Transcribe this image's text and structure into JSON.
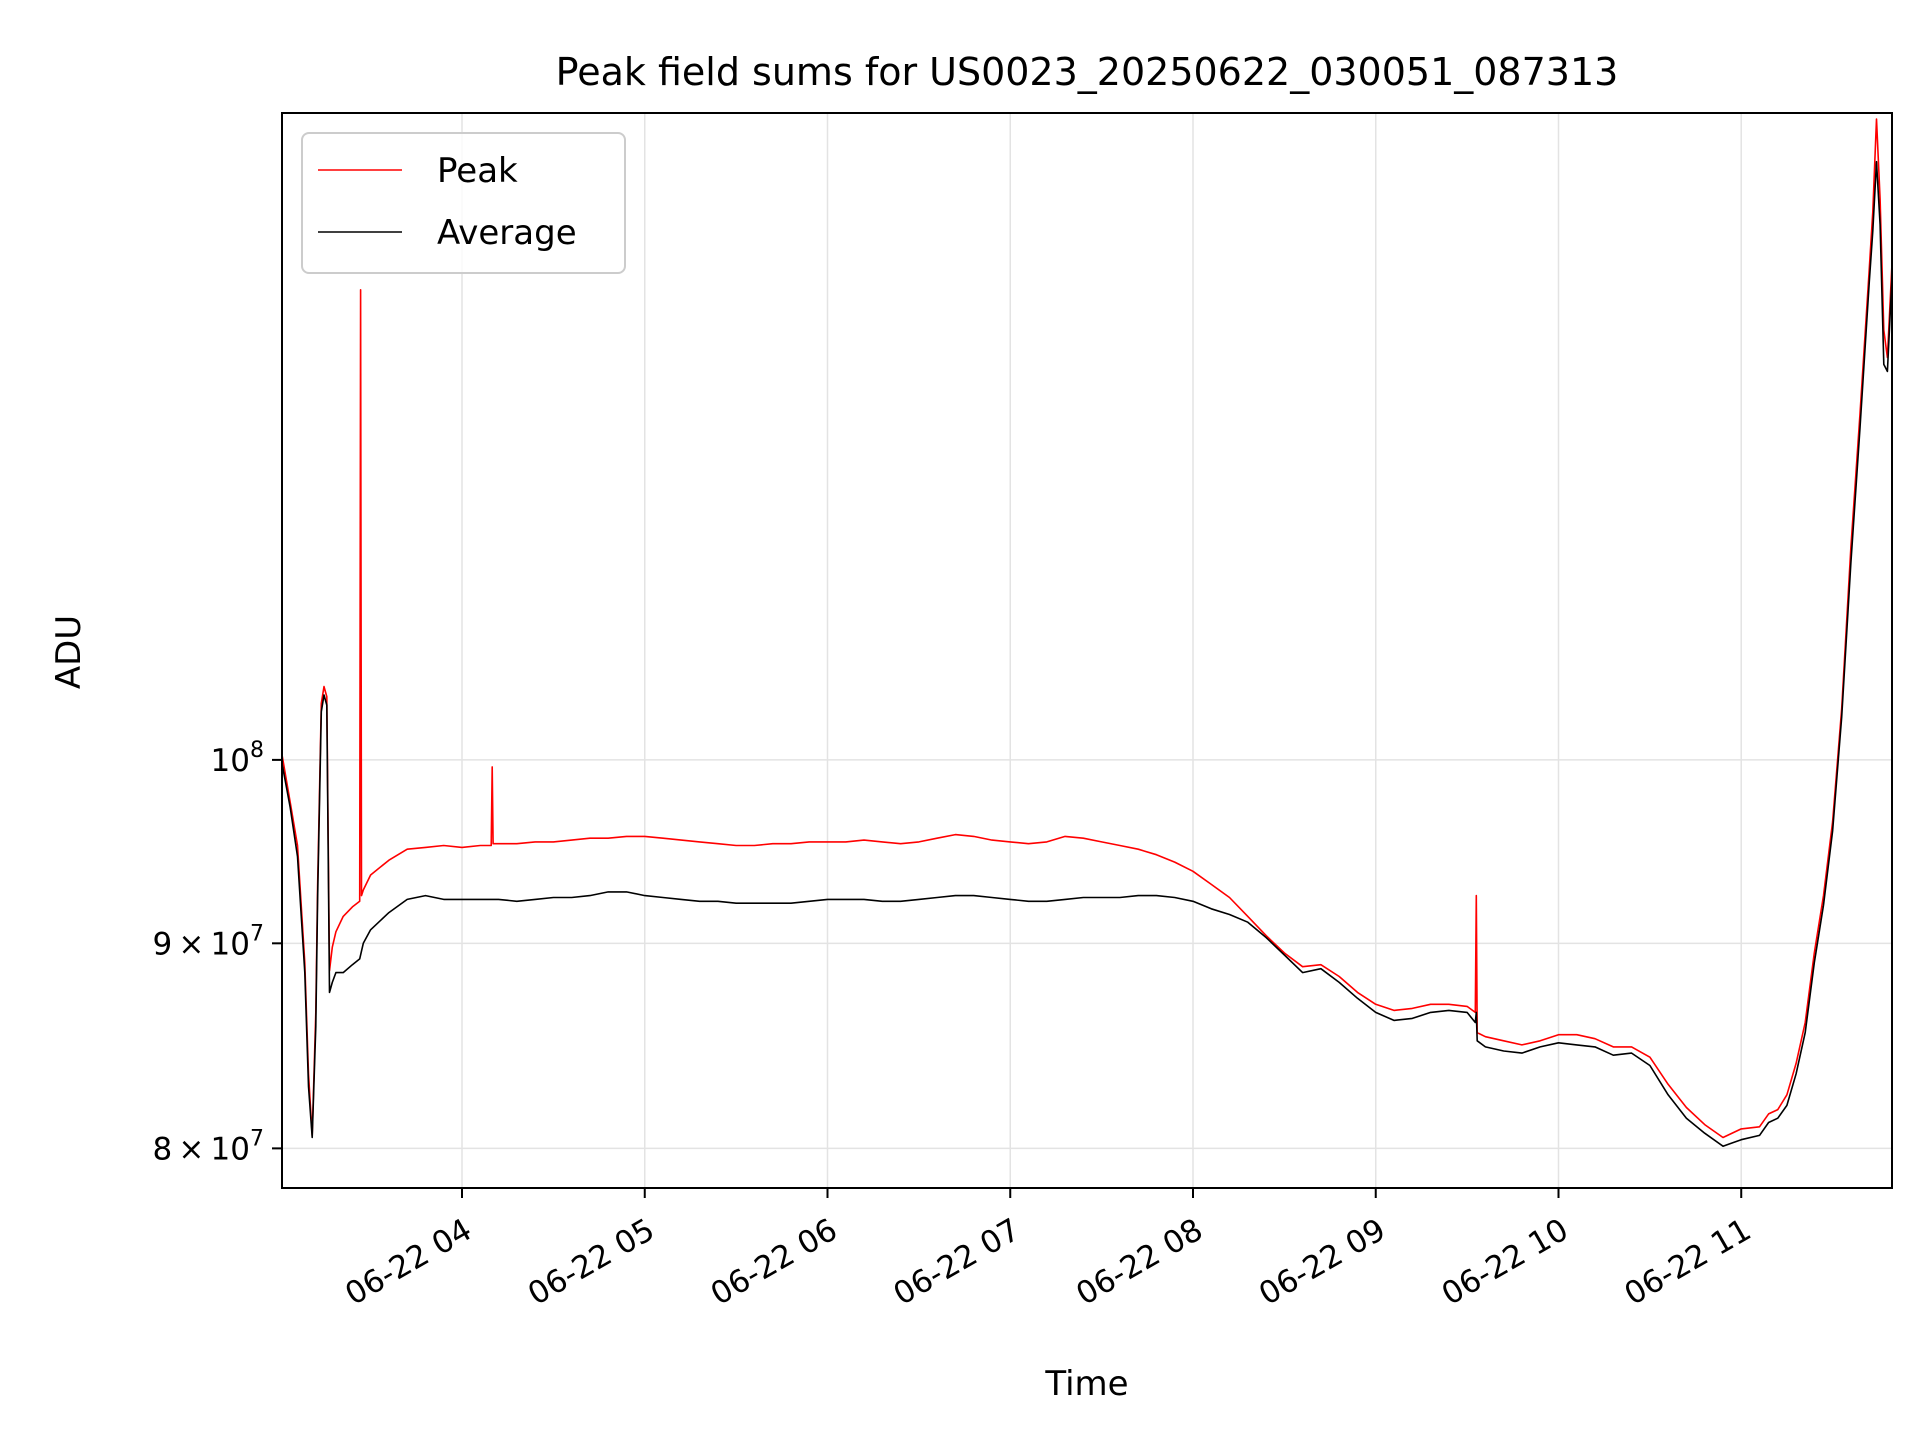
{
  "chart_data": {
    "type": "line",
    "title": "Peak field sums for US0023_20250622_030051_087313",
    "xlabel": "Time",
    "ylabel": "ADU",
    "x_unit": "hours on 06-22",
    "xlim": [
      3.015,
      11.825
    ],
    "ylim": [
      78200000,
      145000000
    ],
    "yscale": "log",
    "grid": true,
    "legend_position": "top-left",
    "x_ticks": [
      {
        "value": 4,
        "label": "06-22 04"
      },
      {
        "value": 5,
        "label": "06-22 05"
      },
      {
        "value": 6,
        "label": "06-22 06"
      },
      {
        "value": 7,
        "label": "06-22 07"
      },
      {
        "value": 8,
        "label": "06-22 08"
      },
      {
        "value": 9,
        "label": "06-22 09"
      },
      {
        "value": 10,
        "label": "06-22 10"
      },
      {
        "value": 11,
        "label": "06-22 11"
      }
    ],
    "y_ticks": [
      {
        "value": 80000000,
        "mantissa": "8",
        "exp": "7"
      },
      {
        "value": 90000000,
        "mantissa": "9",
        "exp": "7"
      },
      {
        "value": 100000000,
        "mantissa": "",
        "exp": "8"
      }
    ],
    "series": [
      {
        "name": "Peak",
        "color": "#ff0000",
        "x": [
          3.015,
          3.06,
          3.1,
          3.14,
          3.16,
          3.18,
          3.2,
          3.21,
          3.23,
          3.245,
          3.26,
          3.275,
          3.29,
          3.31,
          3.35,
          3.4,
          3.44,
          3.445,
          3.45,
          3.46,
          3.5,
          3.6,
          3.7,
          3.8,
          3.9,
          4.0,
          4.1,
          4.16,
          4.165,
          4.17,
          4.2,
          4.3,
          4.4,
          4.5,
          4.6,
          4.7,
          4.8,
          4.9,
          5.0,
          5.1,
          5.2,
          5.3,
          5.4,
          5.5,
          5.6,
          5.7,
          5.8,
          5.9,
          6.0,
          6.1,
          6.2,
          6.3,
          6.4,
          6.5,
          6.6,
          6.7,
          6.8,
          6.9,
          7.0,
          7.1,
          7.2,
          7.3,
          7.4,
          7.5,
          7.6,
          7.7,
          7.8,
          7.9,
          8.0,
          8.1,
          8.2,
          8.3,
          8.4,
          8.5,
          8.6,
          8.7,
          8.8,
          8.9,
          9.0,
          9.1,
          9.2,
          9.3,
          9.4,
          9.5,
          9.545,
          9.55,
          9.555,
          9.6,
          9.7,
          9.8,
          9.9,
          10.0,
          10.1,
          10.2,
          10.3,
          10.4,
          10.5,
          10.6,
          10.7,
          10.8,
          10.9,
          11.0,
          11.1,
          11.15,
          11.2,
          11.25,
          11.3,
          11.35,
          11.4,
          11.45,
          11.5,
          11.55,
          11.6,
          11.65,
          11.7,
          11.72,
          11.74,
          11.76,
          11.78,
          11.8,
          11.825
        ],
        "y": [
          100300000,
          97600000,
          95200000,
          89000000,
          83500000,
          80600000,
          86500000,
          93000000,
          103300000,
          104300000,
          103700000,
          88600000,
          89800000,
          90600000,
          91400000,
          91900000,
          92200000,
          131000000,
          92500000,
          92800000,
          93600000,
          94400000,
          95000000,
          95100000,
          95200000,
          95100000,
          95200000,
          95200000,
          99600000,
          95300000,
          95300000,
          95300000,
          95400000,
          95400000,
          95500000,
          95600000,
          95600000,
          95700000,
          95700000,
          95600000,
          95500000,
          95400000,
          95300000,
          95200000,
          95200000,
          95300000,
          95300000,
          95400000,
          95400000,
          95400000,
          95500000,
          95400000,
          95300000,
          95400000,
          95600000,
          95800000,
          95700000,
          95500000,
          95400000,
          95300000,
          95400000,
          95700000,
          95600000,
          95400000,
          95200000,
          95000000,
          94700000,
          94300000,
          93800000,
          93100000,
          92400000,
          91400000,
          90400000,
          89500000,
          88800000,
          88900000,
          88300000,
          87500000,
          86900000,
          86600000,
          86700000,
          86900000,
          86900000,
          86800000,
          86500000,
          92500000,
          85500000,
          85300000,
          85100000,
          84900000,
          85100000,
          85400000,
          85400000,
          85200000,
          84800000,
          84800000,
          84300000,
          83000000,
          81900000,
          81100000,
          80500000,
          80900000,
          81000000,
          81600000,
          81800000,
          82500000,
          84000000,
          86000000,
          89500000,
          92500000,
          96500000,
          103000000,
          113000000,
          122000000,
          132500000,
          137000000,
          144500000,
          138000000,
          128000000,
          126000000,
          133000000
        ]
      },
      {
        "name": "Average",
        "color": "#000000",
        "x": [
          3.015,
          3.06,
          3.1,
          3.14,
          3.16,
          3.18,
          3.2,
          3.21,
          3.23,
          3.245,
          3.26,
          3.275,
          3.29,
          3.31,
          3.35,
          3.4,
          3.44,
          3.45,
          3.46,
          3.5,
          3.6,
          3.7,
          3.8,
          3.9,
          4.0,
          4.1,
          4.2,
          4.3,
          4.4,
          4.5,
          4.6,
          4.7,
          4.8,
          4.9,
          5.0,
          5.1,
          5.2,
          5.3,
          5.4,
          5.5,
          5.6,
          5.7,
          5.8,
          5.9,
          6.0,
          6.1,
          6.2,
          6.3,
          6.4,
          6.5,
          6.6,
          6.7,
          6.8,
          6.9,
          7.0,
          7.1,
          7.2,
          7.3,
          7.4,
          7.5,
          7.6,
          7.7,
          7.8,
          7.9,
          8.0,
          8.1,
          8.2,
          8.3,
          8.4,
          8.5,
          8.6,
          8.7,
          8.8,
          8.9,
          9.0,
          9.1,
          9.2,
          9.3,
          9.4,
          9.5,
          9.545,
          9.55,
          9.555,
          9.6,
          9.7,
          9.8,
          9.9,
          10.0,
          10.1,
          10.2,
          10.3,
          10.4,
          10.5,
          10.6,
          10.7,
          10.8,
          10.9,
          11.0,
          11.1,
          11.15,
          11.2,
          11.25,
          11.3,
          11.35,
          11.4,
          11.45,
          11.5,
          11.55,
          11.6,
          11.65,
          11.7,
          11.72,
          11.74,
          11.76,
          11.78,
          11.8,
          11.825
        ],
        "y": [
          99800000,
          97300000,
          94600000,
          88500000,
          82900000,
          80500000,
          85800000,
          92300000,
          102800000,
          103800000,
          103200000,
          87500000,
          88000000,
          88500000,
          88500000,
          88900000,
          89200000,
          89600000,
          90000000,
          90700000,
          91600000,
          92300000,
          92500000,
          92300000,
          92300000,
          92300000,
          92300000,
          92200000,
          92300000,
          92400000,
          92400000,
          92500000,
          92700000,
          92700000,
          92500000,
          92400000,
          92300000,
          92200000,
          92200000,
          92100000,
          92100000,
          92100000,
          92100000,
          92200000,
          92300000,
          92300000,
          92300000,
          92200000,
          92200000,
          92300000,
          92400000,
          92500000,
          92500000,
          92400000,
          92300000,
          92200000,
          92200000,
          92300000,
          92400000,
          92400000,
          92400000,
          92500000,
          92500000,
          92400000,
          92200000,
          91800000,
          91500000,
          91100000,
          90300000,
          89400000,
          88500000,
          88700000,
          88000000,
          87200000,
          86500000,
          86100000,
          86200000,
          86500000,
          86600000,
          86500000,
          86000000,
          86500000,
          85100000,
          84800000,
          84600000,
          84500000,
          84800000,
          85000000,
          84900000,
          84800000,
          84400000,
          84500000,
          83900000,
          82500000,
          81400000,
          80700000,
          80100000,
          80400000,
          80600000,
          81200000,
          81400000,
          82000000,
          83500000,
          85500000,
          89000000,
          92000000,
          96000000,
          102500000,
          112000000,
          121000000,
          131500000,
          135500000,
          141000000,
          136000000,
          125500000,
          125000000,
          132000000
        ]
      }
    ]
  }
}
